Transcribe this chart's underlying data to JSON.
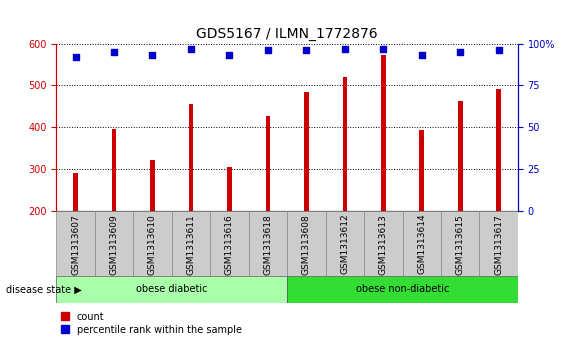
{
  "title": "GDS5167 / ILMN_1772876",
  "samples": [
    "GSM1313607",
    "GSM1313609",
    "GSM1313610",
    "GSM1313611",
    "GSM1313616",
    "GSM1313618",
    "GSM1313608",
    "GSM1313612",
    "GSM1313613",
    "GSM1313614",
    "GSM1313615",
    "GSM1313617"
  ],
  "counts": [
    290,
    395,
    322,
    455,
    305,
    427,
    483,
    520,
    572,
    392,
    462,
    492
  ],
  "percentile_ranks": [
    92,
    95,
    93,
    97,
    93,
    96,
    96,
    97,
    97,
    93,
    95,
    96
  ],
  "ylim_left": [
    200,
    600
  ],
  "ylim_right": [
    0,
    100
  ],
  "yticks_left": [
    200,
    300,
    400,
    500,
    600
  ],
  "yticks_right": [
    0,
    25,
    50,
    75,
    100
  ],
  "ytick_labels_right": [
    "0",
    "25",
    "50",
    "75",
    "100%"
  ],
  "bar_color": "#cc0000",
  "dot_color": "#0000cc",
  "bg_color_samples": "#cccccc",
  "disease_groups": [
    {
      "label": "obese diabetic",
      "start": 0,
      "end": 6,
      "color": "#aaffaa"
    },
    {
      "label": "obese non-diabetic",
      "start": 6,
      "end": 12,
      "color": "#33dd33"
    }
  ],
  "disease_state_label": "disease state",
  "legend_count_label": "count",
  "legend_percentile_label": "percentile rank within the sample",
  "title_fontsize": 10,
  "tick_fontsize": 7,
  "label_fontsize": 8
}
